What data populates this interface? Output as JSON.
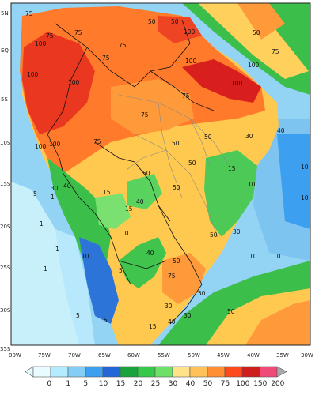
{
  "map": {
    "lat_labels": [
      "5N",
      "EQ",
      "5S",
      "10S",
      "15S",
      "20S",
      "25S",
      "30S",
      "35S"
    ],
    "lon_labels": [
      "80W",
      "75W",
      "70W",
      "65W",
      "60W",
      "55W",
      "50W",
      "45W",
      "40W",
      "35W",
      "30W"
    ],
    "contour_labels": [
      {
        "text": "75"
      },
      {
        "text": "75"
      },
      {
        "text": "100"
      },
      {
        "text": "50"
      },
      {
        "text": "100"
      },
      {
        "text": "50"
      },
      {
        "text": "75"
      },
      {
        "text": "100"
      },
      {
        "text": "75"
      },
      {
        "text": "100"
      },
      {
        "text": "100"
      },
      {
        "text": "75"
      },
      {
        "text": "75"
      },
      {
        "text": "100"
      },
      {
        "text": "50"
      },
      {
        "text": "100"
      },
      {
        "text": "100"
      },
      {
        "text": "75"
      },
      {
        "text": "100"
      },
      {
        "text": "75"
      },
      {
        "text": "75"
      },
      {
        "text": "50"
      },
      {
        "text": "50"
      },
      {
        "text": "50"
      },
      {
        "text": "30"
      },
      {
        "text": "40"
      },
      {
        "text": "50"
      },
      {
        "text": "10"
      },
      {
        "text": "15"
      },
      {
        "text": "15"
      },
      {
        "text": "10"
      },
      {
        "text": "30"
      },
      {
        "text": "40"
      },
      {
        "text": "50"
      },
      {
        "text": "10"
      },
      {
        "text": "5"
      },
      {
        "text": "1"
      },
      {
        "text": "1"
      },
      {
        "text": "1"
      },
      {
        "text": "5"
      },
      {
        "text": "1"
      },
      {
        "text": "10"
      },
      {
        "text": "15"
      },
      {
        "text": "10"
      },
      {
        "text": "5"
      },
      {
        "text": "40"
      },
      {
        "text": "50"
      },
      {
        "text": "30"
      },
      {
        "text": "10"
      },
      {
        "text": "50"
      },
      {
        "text": "75"
      },
      {
        "text": "30"
      },
      {
        "text": "40"
      },
      {
        "text": "50"
      },
      {
        "text": "10"
      },
      {
        "text": "5"
      },
      {
        "text": "40"
      },
      {
        "text": "30"
      },
      {
        "text": "50"
      },
      {
        "text": "15"
      }
    ]
  },
  "colorbar": {
    "labels": [
      "0",
      "1",
      "5",
      "10",
      "15",
      "20",
      "25",
      "30",
      "40",
      "50",
      "75",
      "100",
      "150",
      "200"
    ],
    "colors": [
      "#e8fcff",
      "#b4ecff",
      "#84cef6",
      "#3d9ff0",
      "#2266d8",
      "#1aa33c",
      "#36c848",
      "#6fe067",
      "#ffe28a",
      "#ffc25a",
      "#ff8f32",
      "#ff4a1e",
      "#cf1e1e",
      "#f04a78",
      "#a9a9a9"
    ]
  }
}
